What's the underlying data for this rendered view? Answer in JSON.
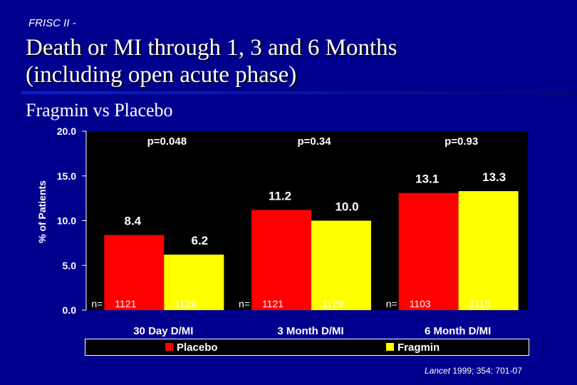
{
  "header": {
    "kicker": "FRISC II -",
    "title_line1": "Death or MI through 1, 3 and 6 Months",
    "title_line2": "(including open acute phase)",
    "subtitle": "Fragmin vs Placebo"
  },
  "chart_data": {
    "type": "bar",
    "title": "Death or MI through 1, 3 and 6 Months (including open acute phase)",
    "subtitle": "Fragmin vs Placebo",
    "xlabel": "",
    "ylabel": "% of Patients",
    "ylim": [
      0,
      20
    ],
    "yticks": [
      0,
      5,
      10,
      15,
      20
    ],
    "ytick_labels": [
      "0.0",
      "5.0",
      "10.0",
      "15.0",
      "20.0"
    ],
    "grid": false,
    "legend_placement": "bottom",
    "categories": [
      "30 Day D/MI",
      "3 Month D/MI",
      "6 Month D/MI"
    ],
    "series": [
      {
        "name": "Placebo",
        "color": "#ff0000",
        "values": [
          8.4,
          11.2,
          13.1
        ],
        "value_labels": [
          "8.4",
          "11.2",
          "13.1"
        ],
        "n": [
          "1121",
          "1121",
          "1103"
        ]
      },
      {
        "name": "Fragmin",
        "color": "#ffff00",
        "values": [
          6.2,
          10.0,
          13.3
        ],
        "value_labels": [
          "6.2",
          "10.0",
          "13.3"
        ],
        "n": [
          "1129",
          "1129",
          "1115"
        ]
      }
    ],
    "p_values": [
      "p=0.048",
      "p=0.34",
      "p=0.93"
    ],
    "n_prefix": "n="
  },
  "source": {
    "journal": "Lancet",
    "citation": " 1999; 354: 701-07"
  }
}
